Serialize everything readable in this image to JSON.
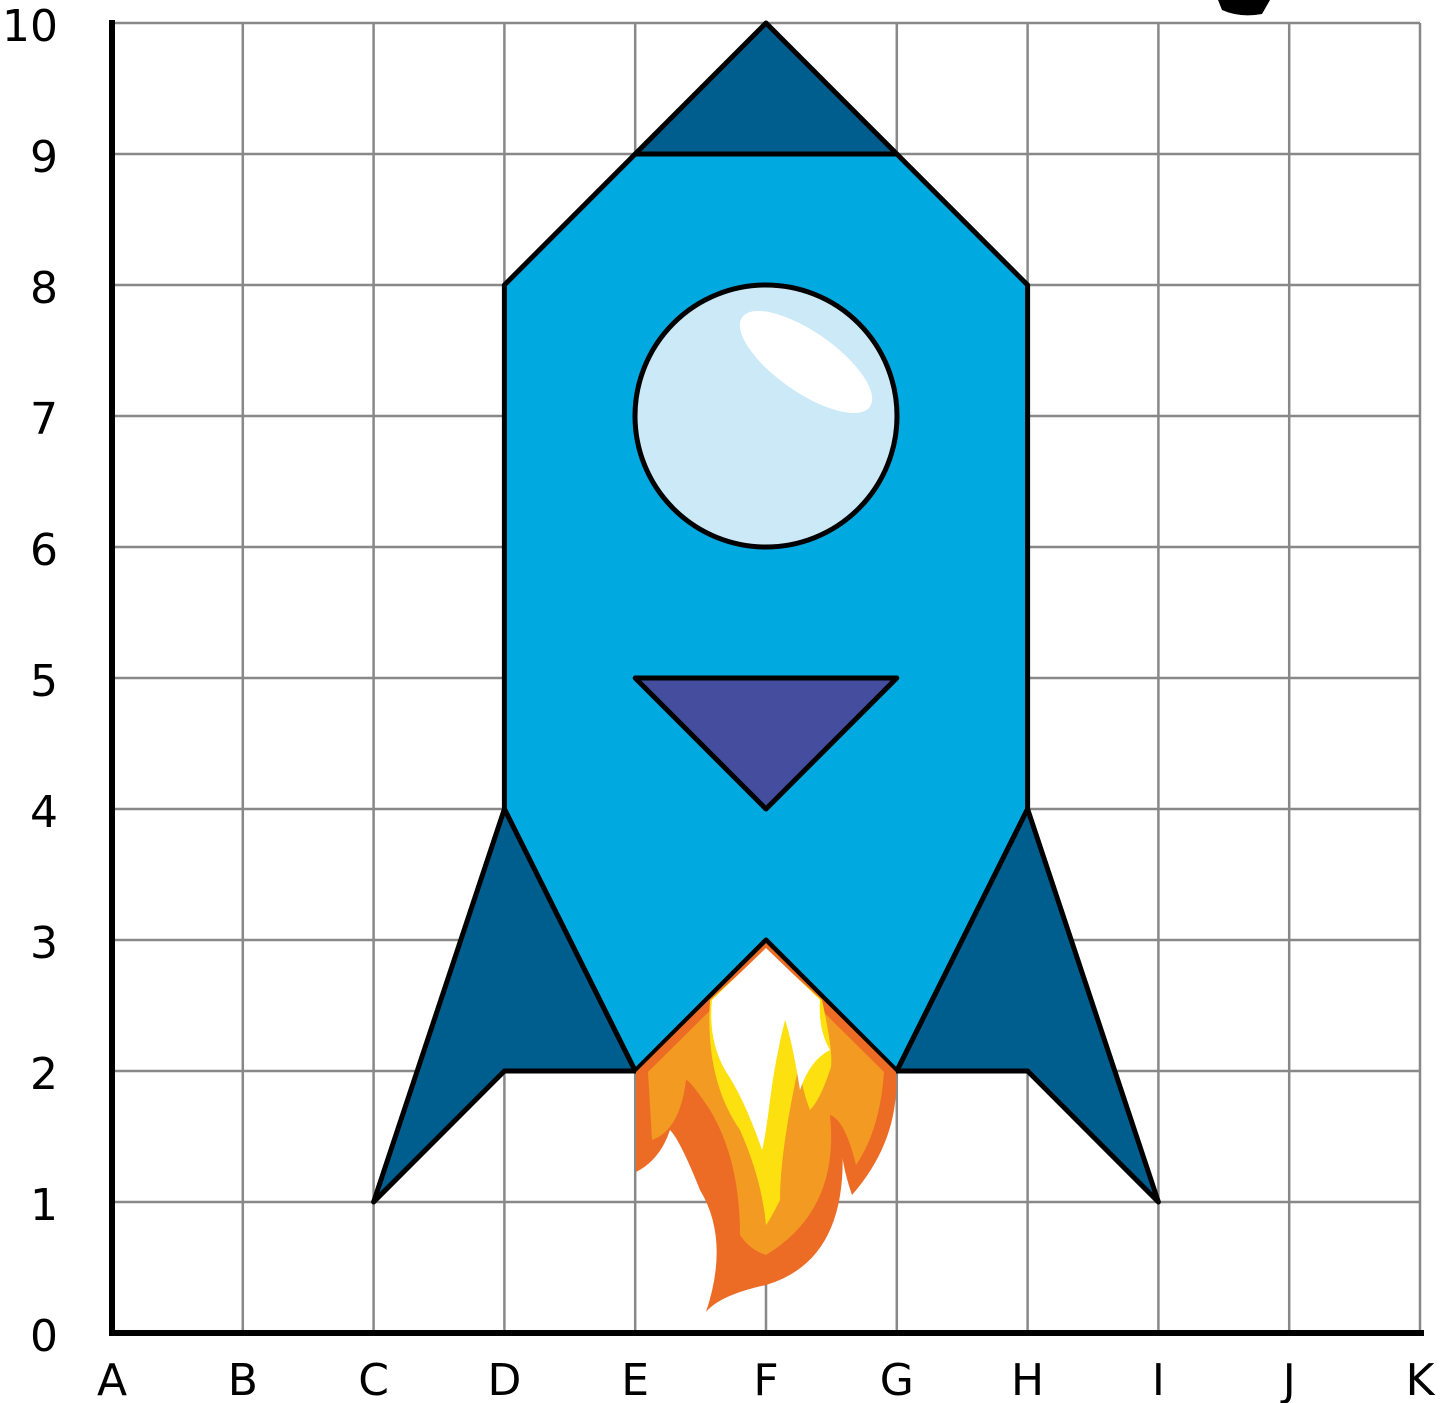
{
  "x_axis": {
    "labels": [
      "A",
      "B",
      "C",
      "D",
      "E",
      "F",
      "G",
      "H",
      "I",
      "J",
      "K"
    ]
  },
  "y_axis": {
    "labels": [
      0,
      1,
      2,
      3,
      4,
      5,
      6,
      7,
      8,
      9,
      10
    ]
  }
}
